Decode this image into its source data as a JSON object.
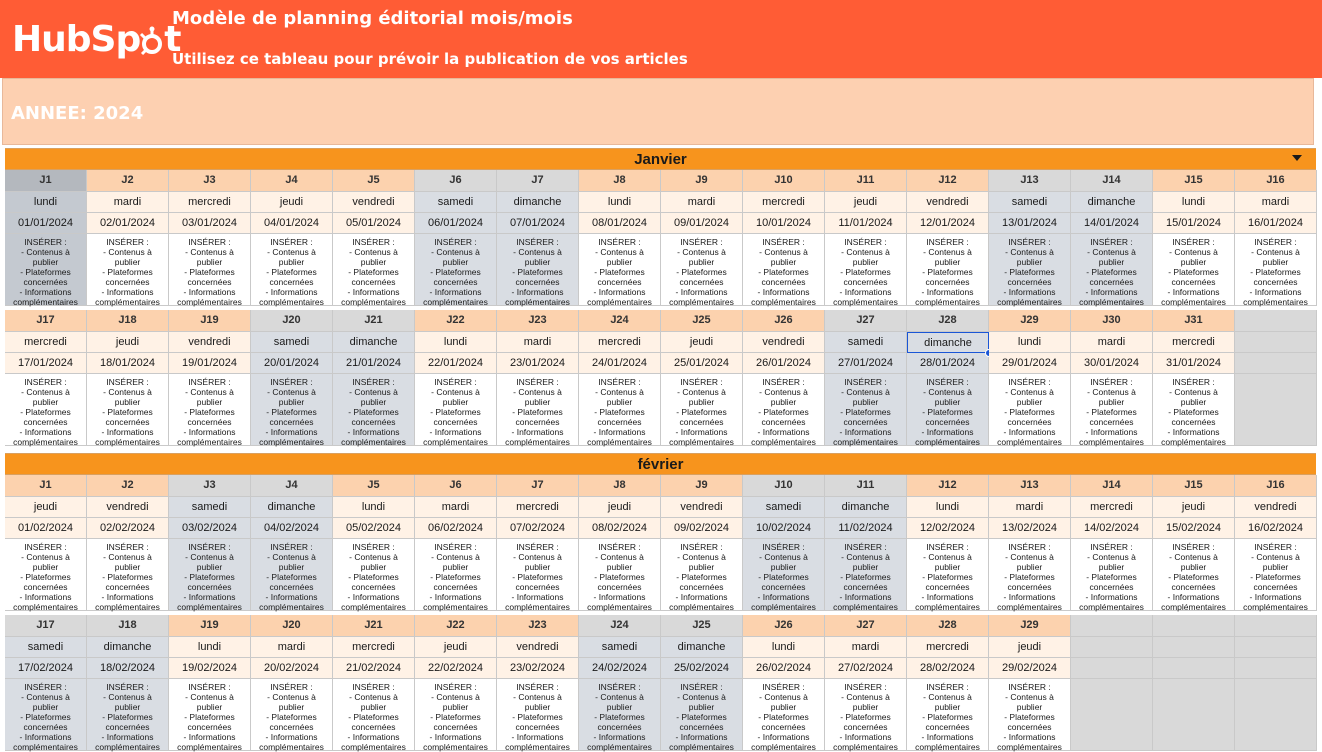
{
  "header": {
    "logo_text": "HubSpot",
    "title": "Modèle de planning éditorial mois/mois",
    "subtitle": "Utilisez ce tableau pour prévoir la publication de vos articles",
    "year_label": "ANNEE: 2024"
  },
  "insert_lines": [
    "INSÉRER :",
    "- Contenus à",
    "publier",
    "- Plateformes",
    "concernées",
    "- Informations",
    "complémentaires"
  ],
  "months": [
    {
      "name": "Janvier",
      "rows": [
        [
          {
            "j": "J1",
            "day": "lundi",
            "date": "01/01/2024"
          },
          {
            "j": "J2",
            "day": "mardi",
            "date": "02/01/2024"
          },
          {
            "j": "J3",
            "day": "mercredi",
            "date": "03/01/2024"
          },
          {
            "j": "J4",
            "day": "jeudi",
            "date": "04/01/2024"
          },
          {
            "j": "J5",
            "day": "vendredi",
            "date": "05/01/2024"
          },
          {
            "j": "J6",
            "day": "samedi",
            "date": "06/01/2024"
          },
          {
            "j": "J7",
            "day": "dimanche",
            "date": "07/01/2024"
          },
          {
            "j": "J8",
            "day": "lundi",
            "date": "08/01/2024"
          },
          {
            "j": "J9",
            "day": "mardi",
            "date": "09/01/2024"
          },
          {
            "j": "J10",
            "day": "mercredi",
            "date": "10/01/2024"
          },
          {
            "j": "J11",
            "day": "jeudi",
            "date": "11/01/2024"
          },
          {
            "j": "J12",
            "day": "vendredi",
            "date": "12/01/2024"
          },
          {
            "j": "J13",
            "day": "samedi",
            "date": "13/01/2024"
          },
          {
            "j": "J14",
            "day": "dimanche",
            "date": "14/01/2024"
          },
          {
            "j": "J15",
            "day": "lundi",
            "date": "15/01/2024"
          },
          {
            "j": "J16",
            "day": "mardi",
            "date": "16/01/2024"
          }
        ],
        [
          {
            "j": "J17",
            "day": "mercredi",
            "date": "17/01/2024"
          },
          {
            "j": "J18",
            "day": "jeudi",
            "date": "18/01/2024"
          },
          {
            "j": "J19",
            "day": "vendredi",
            "date": "19/01/2024"
          },
          {
            "j": "J20",
            "day": "samedi",
            "date": "20/01/2024"
          },
          {
            "j": "J21",
            "day": "dimanche",
            "date": "21/01/2024"
          },
          {
            "j": "J22",
            "day": "lundi",
            "date": "22/01/2024"
          },
          {
            "j": "J23",
            "day": "mardi",
            "date": "23/01/2024"
          },
          {
            "j": "J24",
            "day": "mercredi",
            "date": "24/01/2024"
          },
          {
            "j": "J25",
            "day": "jeudi",
            "date": "25/01/2024"
          },
          {
            "j": "J26",
            "day": "vendredi",
            "date": "26/01/2024"
          },
          {
            "j": "J27",
            "day": "samedi",
            "date": "27/01/2024"
          },
          {
            "j": "J28",
            "day": "dimanche",
            "date": "28/01/2024"
          },
          {
            "j": "J29",
            "day": "lundi",
            "date": "29/01/2024"
          },
          {
            "j": "J30",
            "day": "mardi",
            "date": "30/01/2024"
          },
          {
            "j": "J31",
            "day": "mercredi",
            "date": "31/01/2024"
          }
        ]
      ]
    },
    {
      "name": "février",
      "rows": [
        [
          {
            "j": "J1",
            "day": "jeudi",
            "date": "01/02/2024"
          },
          {
            "j": "J2",
            "day": "vendredi",
            "date": "02/02/2024"
          },
          {
            "j": "J3",
            "day": "samedi",
            "date": "03/02/2024"
          },
          {
            "j": "J4",
            "day": "dimanche",
            "date": "04/02/2024"
          },
          {
            "j": "J5",
            "day": "lundi",
            "date": "05/02/2024"
          },
          {
            "j": "J6",
            "day": "mardi",
            "date": "06/02/2024"
          },
          {
            "j": "J7",
            "day": "mercredi",
            "date": "07/02/2024"
          },
          {
            "j": "J8",
            "day": "jeudi",
            "date": "08/02/2024"
          },
          {
            "j": "J9",
            "day": "vendredi",
            "date": "09/02/2024"
          },
          {
            "j": "J10",
            "day": "samedi",
            "date": "10/02/2024"
          },
          {
            "j": "J11",
            "day": "dimanche",
            "date": "11/02/2024"
          },
          {
            "j": "J12",
            "day": "lundi",
            "date": "12/02/2024"
          },
          {
            "j": "J13",
            "day": "mardi",
            "date": "13/02/2024"
          },
          {
            "j": "J14",
            "day": "mercredi",
            "date": "14/02/2024"
          },
          {
            "j": "J15",
            "day": "jeudi",
            "date": "15/02/2024"
          },
          {
            "j": "J16",
            "day": "vendredi",
            "date": "16/02/2024"
          }
        ],
        [
          {
            "j": "J17",
            "day": "samedi",
            "date": "17/02/2024"
          },
          {
            "j": "J18",
            "day": "dimanche",
            "date": "18/02/2024"
          },
          {
            "j": "J19",
            "day": "lundi",
            "date": "19/02/2024"
          },
          {
            "j": "J20",
            "day": "mardi",
            "date": "20/02/2024"
          },
          {
            "j": "J21",
            "day": "mercredi",
            "date": "21/02/2024"
          },
          {
            "j": "J22",
            "day": "jeudi",
            "date": "22/02/2024"
          },
          {
            "j": "J23",
            "day": "vendredi",
            "date": "23/02/2024"
          },
          {
            "j": "J24",
            "day": "samedi",
            "date": "24/02/2024"
          },
          {
            "j": "J25",
            "day": "dimanche",
            "date": "25/02/2024"
          },
          {
            "j": "J26",
            "day": "lundi",
            "date": "26/02/2024"
          },
          {
            "j": "J27",
            "day": "mardi",
            "date": "27/02/2024"
          },
          {
            "j": "J28",
            "day": "mercredi",
            "date": "28/02/2024"
          },
          {
            "j": "J29",
            "day": "jeudi",
            "date": "29/02/2024"
          }
        ]
      ]
    }
  ],
  "selected_cell": "28/01/2024",
  "colors": {
    "brand_orange": "#ff5c35",
    "month_bar": "#f7941d",
    "year_band": "#fdd0b1",
    "weekend_grey": "#d9dde3"
  }
}
